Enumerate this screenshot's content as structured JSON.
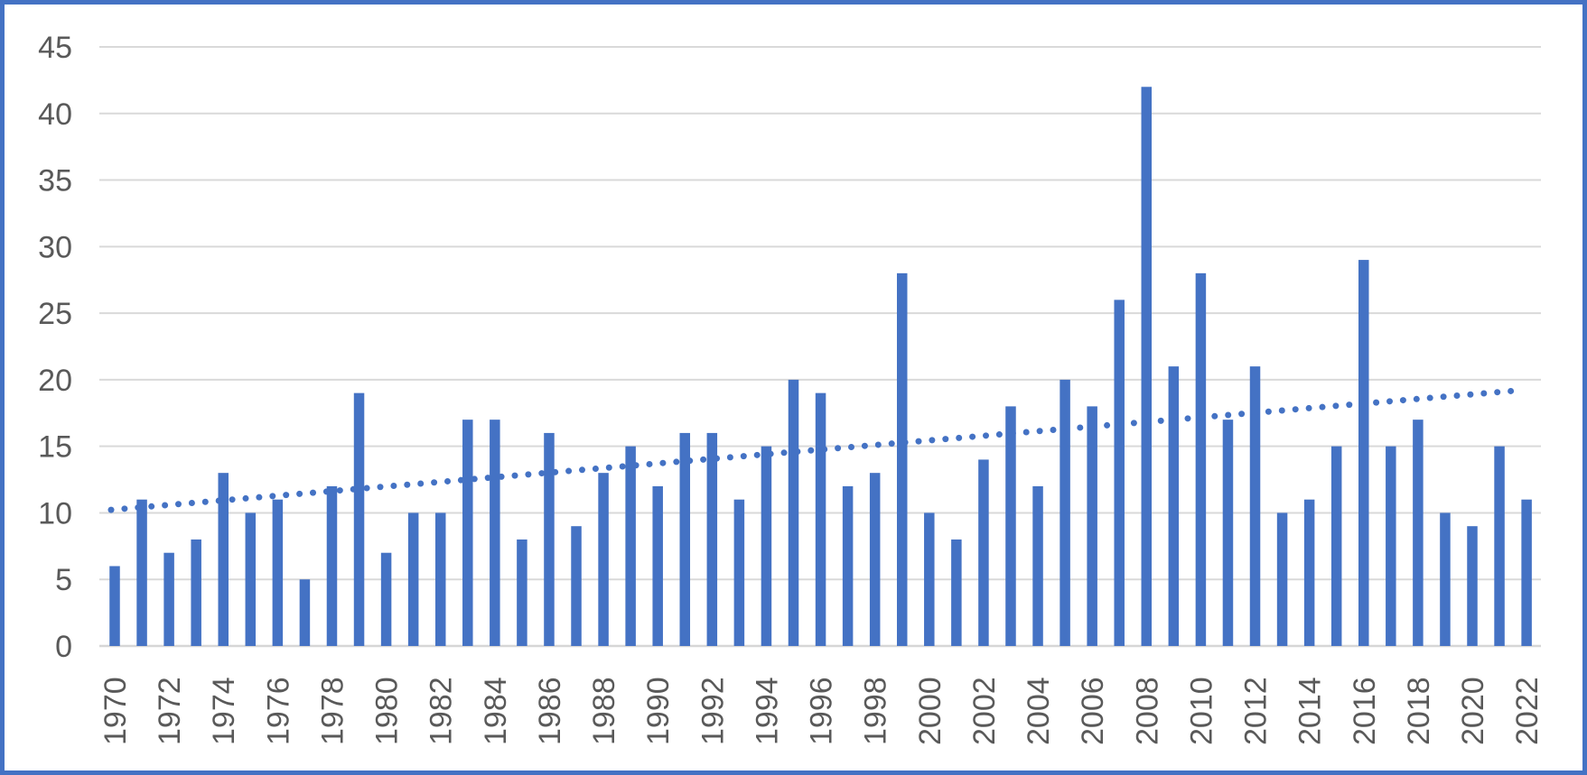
{
  "chart_data": {
    "type": "bar",
    "title": "",
    "xlabel": "",
    "ylabel": "",
    "categories": [
      "1970",
      "1971",
      "1972",
      "1973",
      "1974",
      "1975",
      "1976",
      "1977",
      "1978",
      "1979",
      "1980",
      "1981",
      "1982",
      "1983",
      "1984",
      "1985",
      "1986",
      "1987",
      "1988",
      "1989",
      "1990",
      "1991",
      "1992",
      "1993",
      "1994",
      "1995",
      "1996",
      "1997",
      "1998",
      "1999",
      "2000",
      "2001",
      "2002",
      "2003",
      "2004",
      "2005",
      "2006",
      "2007",
      "2008",
      "2009",
      "2010",
      "2011",
      "2012",
      "2013",
      "2014",
      "2015",
      "2016",
      "2017",
      "2018",
      "2019",
      "2020",
      "2021",
      "2022"
    ],
    "values": [
      6,
      11,
      7,
      8,
      13,
      10,
      11,
      5,
      12,
      19,
      7,
      10,
      10,
      17,
      17,
      8,
      16,
      9,
      13,
      15,
      12,
      16,
      16,
      11,
      15,
      20,
      19,
      12,
      13,
      28,
      10,
      8,
      14,
      18,
      12,
      20,
      18,
      26,
      42,
      21,
      28,
      17,
      21,
      10,
      11,
      15,
      29,
      15,
      17,
      10,
      9,
      15,
      11
    ],
    "ylim": [
      0,
      45
    ],
    "y_ticks": [
      "0",
      "5",
      "10",
      "15",
      "20",
      "25",
      "30",
      "35",
      "40",
      "45"
    ],
    "x_tick_labels": [
      "1970",
      "1972",
      "1974",
      "1976",
      "1978",
      "1980",
      "1982",
      "1984",
      "1986",
      "1988",
      "1990",
      "1992",
      "1994",
      "1996",
      "1998",
      "2000",
      "2002",
      "2004",
      "2006",
      "2008",
      "2010",
      "2012",
      "2014",
      "2016",
      "2018",
      "2020",
      "2022"
    ],
    "grid": "horizontal",
    "legend": "none",
    "trendline": {
      "type": "linear",
      "style": "dotted",
      "value_at_first_category": 10.25,
      "value_at_last_category": 19.25
    },
    "colors": {
      "bar": "#4472C4",
      "trendline": "#4472C4",
      "gridline": "#D9D9D9",
      "axis_line": "#D6D6D6",
      "axis_text": "#595959",
      "frame_border": "#4472C4",
      "background": "#FFFFFF"
    }
  }
}
